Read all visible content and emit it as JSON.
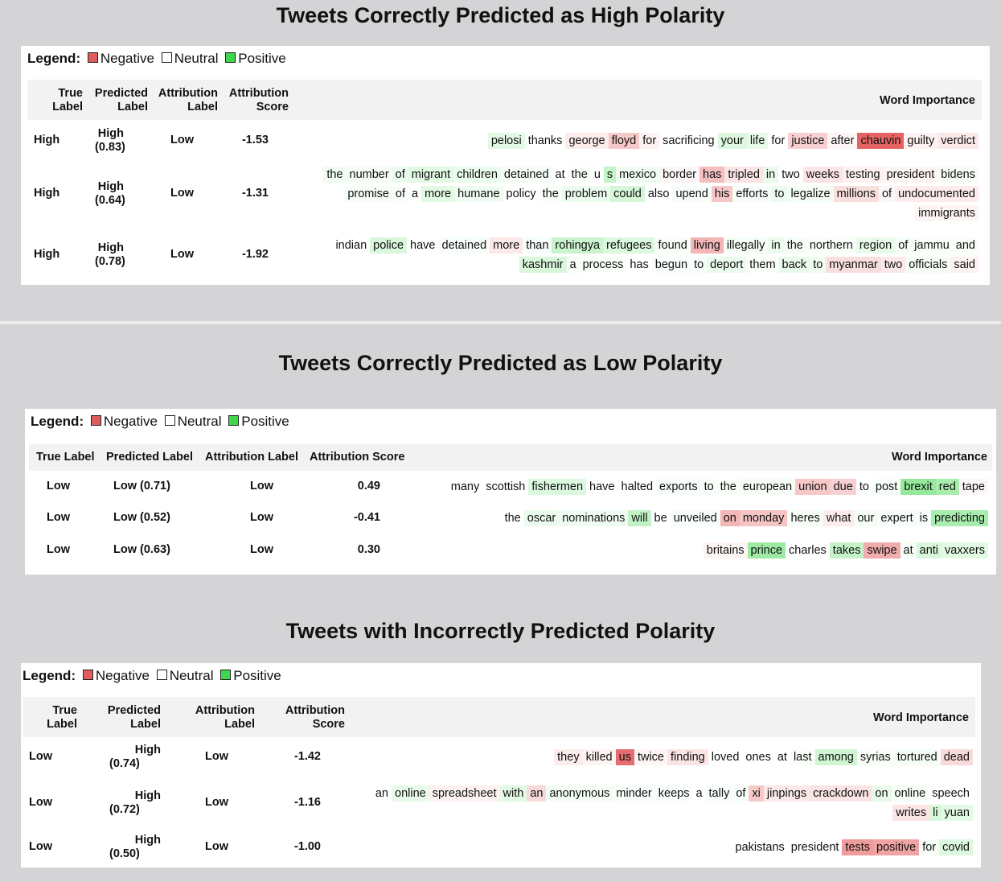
{
  "legend": {
    "title": "Legend:",
    "negative": "Negative",
    "neutral": "Neutral",
    "positive": "Positive"
  },
  "colors": {
    "page_bg": "#d4d3d5",
    "negative": "#e05c5c",
    "neutral": "#ffffff",
    "positive": "#3ed64a"
  },
  "sections": [
    {
      "title": "Tweets Correctly Predicted as High Polarity",
      "headers": {
        "true_label": [
          "True",
          "Label"
        ],
        "predicted_label": [
          "Predicted",
          "Label"
        ],
        "attribution_label": [
          "Attribution",
          "Label"
        ],
        "attribution_score": [
          "Attribution",
          "Score"
        ],
        "word_importance": "Word Importance"
      },
      "rows": [
        {
          "true_label": "High",
          "predicted_label": "High",
          "predicted_prob": "(0.83)",
          "attribution_label": "Low",
          "attribution_score": "-1.53",
          "words": [
            [
              "pelosi",
              0.15
            ],
            [
              "thanks",
              0.0
            ],
            [
              "george",
              -0.1
            ],
            [
              "floyd",
              -0.3
            ],
            [
              "for",
              -0.08
            ],
            [
              "sacrificing",
              0.0
            ],
            [
              "your",
              0.18
            ],
            [
              "life",
              0.12
            ],
            [
              "for",
              0.0
            ],
            [
              "justice",
              -0.25
            ],
            [
              "after",
              -0.05
            ],
            [
              "chauvin",
              -0.85
            ],
            [
              "guilty",
              -0.08
            ],
            [
              "verdict",
              -0.12
            ]
          ]
        },
        {
          "true_label": "High",
          "predicted_label": "High",
          "predicted_prob": "(0.64)",
          "attribution_label": "Low",
          "attribution_score": "-1.31",
          "words": [
            [
              "the",
              0.08
            ],
            [
              "number",
              0.05
            ],
            [
              "of",
              0.1
            ],
            [
              "migrant",
              0.15
            ],
            [
              "children",
              0.1
            ],
            [
              "detained",
              0.05
            ],
            [
              "at",
              0.0
            ],
            [
              "the",
              0.03
            ],
            [
              "u",
              0.0
            ],
            [
              "s",
              0.3
            ],
            [
              "mexico",
              0.08
            ],
            [
              "border",
              -0.05
            ],
            [
              "has",
              -0.35
            ],
            [
              "tripled",
              -0.15
            ],
            [
              "in",
              0.12
            ],
            [
              "two",
              0.0
            ],
            [
              "weeks",
              -0.15
            ],
            [
              "testing",
              -0.08
            ],
            [
              "president",
              -0.06
            ],
            [
              "bidens",
              0.05
            ],
            [
              "promise",
              0.05
            ],
            [
              "of",
              0.03
            ],
            [
              "a",
              0.0
            ],
            [
              "more",
              0.15
            ],
            [
              "humane",
              0.08
            ],
            [
              "policy",
              0.0
            ],
            [
              "the",
              0.03
            ],
            [
              "problem",
              0.1
            ],
            [
              "could",
              0.22
            ],
            [
              "also",
              0.0
            ],
            [
              "upend",
              0.04
            ],
            [
              "his",
              -0.3
            ],
            [
              "efforts",
              0.04
            ],
            [
              "to",
              0.1
            ],
            [
              "legalize",
              0.06
            ],
            [
              "millions",
              -0.18
            ],
            [
              "of",
              -0.05
            ],
            [
              "undocumented",
              -0.1
            ],
            [
              "immigrants",
              -0.06
            ]
          ]
        },
        {
          "true_label": "High",
          "predicted_label": "High",
          "predicted_prob": "(0.78)",
          "attribution_label": "Low",
          "attribution_score": "-1.92",
          "words": [
            [
              "indian",
              0.0
            ],
            [
              "police",
              0.2
            ],
            [
              "have",
              0.0
            ],
            [
              "detained",
              0.04
            ],
            [
              "more",
              -0.12
            ],
            [
              "than",
              0.04
            ],
            [
              "rohingya",
              0.28
            ],
            [
              "refugees",
              0.18
            ],
            [
              "found",
              0.03
            ],
            [
              "living",
              -0.4
            ],
            [
              "illegally",
              0.05
            ],
            [
              "in",
              0.1
            ],
            [
              "the",
              0.05
            ],
            [
              "northern",
              0.03
            ],
            [
              "region",
              0.12
            ],
            [
              "of",
              0.05
            ],
            [
              "jammu",
              0.03
            ],
            [
              "and",
              0.03
            ],
            [
              "kashmir",
              0.2
            ],
            [
              "a",
              0.04
            ],
            [
              "process",
              0.03
            ],
            [
              "has",
              0.0
            ],
            [
              "begun",
              0.04
            ],
            [
              "to",
              0.04
            ],
            [
              "deport",
              0.1
            ],
            [
              "them",
              0.03
            ],
            [
              "back",
              0.12
            ],
            [
              "to",
              0.08
            ],
            [
              "myanmar",
              -0.18
            ],
            [
              "two",
              -0.12
            ],
            [
              "officials",
              0.05
            ],
            [
              "said",
              -0.08
            ]
          ]
        }
      ]
    },
    {
      "title": "Tweets Correctly Predicted as Low Polarity",
      "headers": {
        "true_label": [
          "True Label"
        ],
        "predicted_label": [
          "Predicted Label"
        ],
        "attribution_label": [
          "Attribution Label"
        ],
        "attribution_score": [
          "Attribution Score"
        ],
        "word_importance": "Word Importance"
      },
      "rows": [
        {
          "true_label": "Low",
          "predicted_label": "Low (0.71)",
          "predicted_prob": "",
          "attribution_label": "Low",
          "attribution_score": "0.49",
          "words": [
            [
              "many",
              0.0
            ],
            [
              "scottish",
              0.0
            ],
            [
              "fishermen",
              0.18
            ],
            [
              "have",
              0.0
            ],
            [
              "halted",
              0.0
            ],
            [
              "exports",
              0.04
            ],
            [
              "to",
              0.04
            ],
            [
              "the",
              0.03
            ],
            [
              "european",
              0.05
            ],
            [
              "union",
              -0.3
            ],
            [
              "due",
              -0.25
            ],
            [
              "to",
              0.0
            ],
            [
              "post",
              0.04
            ],
            [
              "brexit",
              0.55
            ],
            [
              "red",
              0.45
            ],
            [
              "tape",
              -0.05
            ]
          ]
        },
        {
          "true_label": "Low",
          "predicted_label": "Low (0.52)",
          "predicted_prob": "",
          "attribution_label": "Low",
          "attribution_score": "-0.41",
          "words": [
            [
              "the",
              0.0
            ],
            [
              "oscar",
              0.1
            ],
            [
              "nominations",
              0.08
            ],
            [
              "will",
              0.32
            ],
            [
              "be",
              0.0
            ],
            [
              "unveiled",
              0.04
            ],
            [
              "on",
              -0.4
            ],
            [
              "monday",
              -0.32
            ],
            [
              "heres",
              0.05
            ],
            [
              "what",
              -0.1
            ],
            [
              "our",
              0.05
            ],
            [
              "expert",
              0.04
            ],
            [
              "is",
              0.04
            ],
            [
              "predicting",
              0.45
            ]
          ]
        },
        {
          "true_label": "Low",
          "predicted_label": "Low (0.63)",
          "predicted_prob": "",
          "attribution_label": "Low",
          "attribution_score": "0.30",
          "words": [
            [
              "britains",
              -0.06
            ],
            [
              "prince",
              0.5
            ],
            [
              "charles",
              0.0
            ],
            [
              "takes",
              0.3
            ],
            [
              "swipe",
              -0.45
            ],
            [
              "at",
              0.05
            ],
            [
              "anti",
              0.2
            ],
            [
              "vaxxers",
              0.15
            ]
          ]
        }
      ]
    },
    {
      "title": "Tweets with Incorrectly Predicted Polarity",
      "headers": {
        "true_label": [
          "True",
          "Label"
        ],
        "predicted_label": [
          "Predicted",
          "Label"
        ],
        "attribution_label": [
          "Attribution",
          "Label"
        ],
        "attribution_score": [
          "Attribution",
          "Score"
        ],
        "word_importance": "Word Importance"
      },
      "rows": [
        {
          "true_label": "Low",
          "predicted_label": "High",
          "predicted_prob": "(0.74)",
          "attribution_label": "Low",
          "attribution_score": "-1.42",
          "words": [
            [
              "they",
              -0.1
            ],
            [
              "killed",
              -0.06
            ],
            [
              "us",
              -0.8
            ],
            [
              "twice",
              -0.06
            ],
            [
              "finding",
              -0.15
            ],
            [
              "loved",
              0.0
            ],
            [
              "ones",
              0.0
            ],
            [
              "at",
              0.0
            ],
            [
              "last",
              0.03
            ],
            [
              "among",
              0.25
            ],
            [
              "syrias",
              0.03
            ],
            [
              "tortured",
              0.05
            ],
            [
              "dead",
              -0.2
            ]
          ]
        },
        {
          "true_label": "Low",
          "predicted_label": "High",
          "predicted_prob": "(0.72)",
          "attribution_label": "Low",
          "attribution_score": "-1.16",
          "words": [
            [
              "an",
              0.0
            ],
            [
              "online",
              0.12
            ],
            [
              "spreadsheet",
              -0.08
            ],
            [
              "with",
              0.15
            ],
            [
              "an",
              -0.2
            ],
            [
              "anonymous",
              0.06
            ],
            [
              "minder",
              0.04
            ],
            [
              "keeps",
              0.04
            ],
            [
              "a",
              0.0
            ],
            [
              "tally",
              0.04
            ],
            [
              "of",
              0.04
            ],
            [
              "xi",
              -0.3
            ],
            [
              "jinpings",
              -0.12
            ],
            [
              "crackdown",
              -0.15
            ],
            [
              "on",
              0.12
            ],
            [
              "online",
              0.05
            ],
            [
              "speech",
              0.0
            ],
            [
              "writes",
              -0.15
            ],
            [
              "li",
              0.2
            ],
            [
              "yuan",
              0.15
            ]
          ]
        },
        {
          "true_label": "Low",
          "predicted_label": "High",
          "predicted_prob": "(0.50)",
          "attribution_label": "Low",
          "attribution_score": "-1.00",
          "words": [
            [
              "pakistans",
              0.0
            ],
            [
              "president",
              0.0
            ],
            [
              "tests",
              -0.55
            ],
            [
              "positive",
              -0.5
            ],
            [
              "for",
              0.05
            ],
            [
              "covid",
              0.18
            ]
          ]
        }
      ]
    }
  ]
}
